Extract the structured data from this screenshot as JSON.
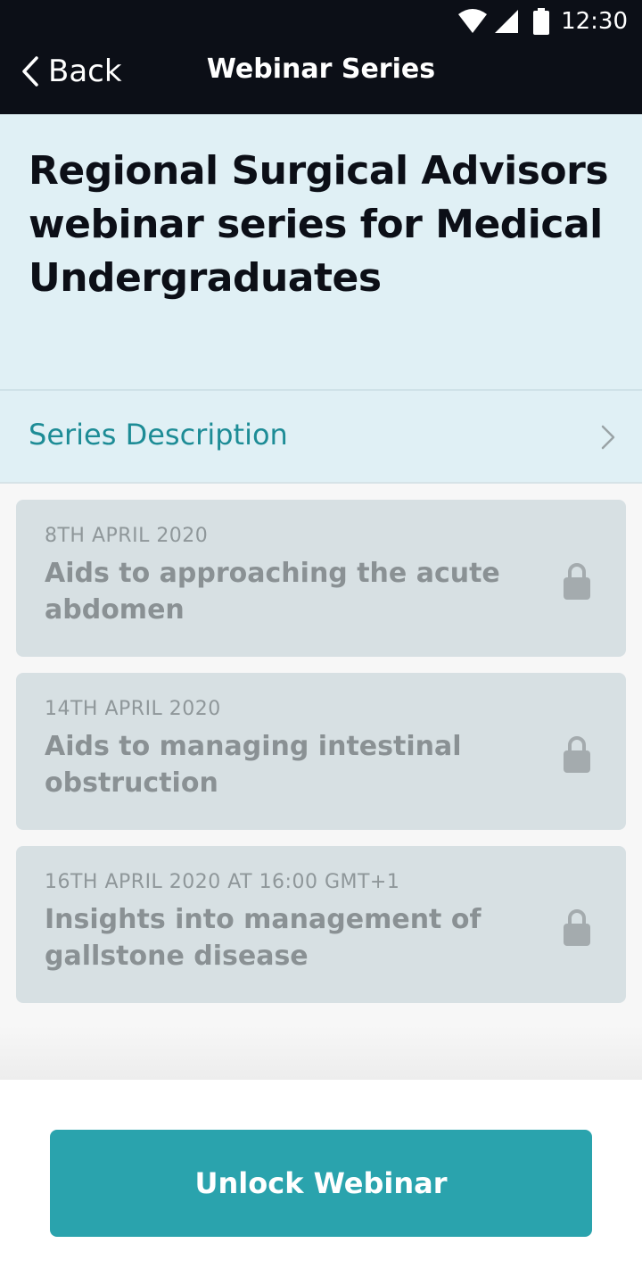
{
  "status_bar": {
    "time": "12:30",
    "icons": [
      "wifi-icon",
      "signal-icon",
      "battery-icon"
    ]
  },
  "nav": {
    "back_label": "Back",
    "title": "Webinar Series"
  },
  "series": {
    "title": "Regional Surgical Advisors webinar series for Medical Undergraduates",
    "description_label": "Series Description"
  },
  "sessions": [
    {
      "date": "8TH APRIL 2020",
      "title": "Aids to approaching the acute abdomen",
      "locked": true
    },
    {
      "date": "14TH APRIL 2020",
      "title": "Aids to managing intestinal obstruction",
      "locked": true
    },
    {
      "date": "16TH APRIL 2020 AT 16:00 GMT+1",
      "title": "Insights into management of gallstone disease",
      "locked": true
    }
  ],
  "footer": {
    "unlock_label": "Unlock Webinar"
  },
  "colors": {
    "header_bg": "#0c0f17",
    "title_bg": "#e0f0f5",
    "accent": "#2aa3ad",
    "link": "#1d8c96",
    "card_bg": "#d7e0e3"
  }
}
